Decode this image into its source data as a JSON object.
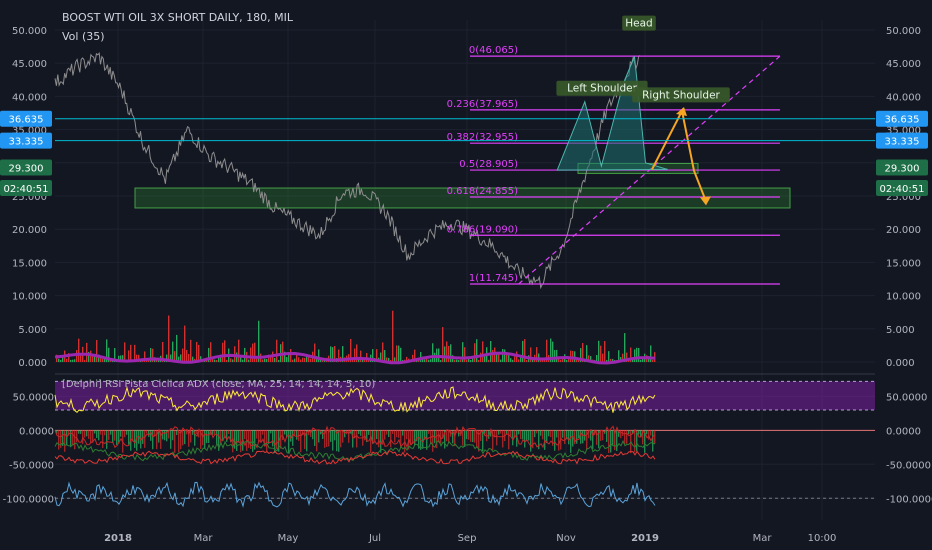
{
  "header": {
    "title": "BOOST WTI OIL 3X SHORT DAILY, 180, MIL",
    "volume_label": "Vol (35)"
  },
  "chart_data": {
    "type": "line",
    "price_axis": {
      "ticks": [
        "50.000",
        "45.000",
        "40.000",
        "35.000",
        "30.000",
        "25.000",
        "20.000",
        "15.000",
        "10.000",
        "5.000",
        "0.000"
      ],
      "tick_values": [
        50,
        45,
        40,
        35,
        30,
        25,
        20,
        15,
        10,
        5,
        0
      ],
      "range": [
        -1.5,
        51.5
      ]
    },
    "price_series": {
      "name": "Price",
      "x": [
        0,
        4,
        8,
        12,
        16,
        20,
        24,
        28,
        32,
        36,
        40,
        44,
        48,
        52,
        56,
        60,
        64,
        68,
        72,
        76,
        80,
        84,
        88,
        92,
        96,
        100,
        104,
        106
      ],
      "y": [
        42,
        44.5,
        46,
        41,
        33,
        27.5,
        35,
        31,
        29,
        26.5,
        23,
        21,
        19,
        25.5,
        26,
        22.5,
        16,
        19.5,
        21,
        19.3,
        17,
        13.5,
        12,
        17.5,
        28,
        38,
        44,
        46
      ]
    },
    "date_axis": {
      "labels": [
        "2018",
        "Mar",
        "May",
        "Jul",
        "Sep",
        "Nov",
        "2019",
        "Mar",
        "10:00"
      ],
      "bold": [
        true,
        false,
        false,
        false,
        false,
        false,
        true,
        false,
        false
      ]
    },
    "fibonacci": [
      {
        "label": "0(46.065)",
        "value": 46.065
      },
      {
        "label": "0.236(37.965)",
        "value": 37.965
      },
      {
        "label": "0.382(32.955)",
        "value": 32.955
      },
      {
        "label": "0.5(28.905)",
        "value": 28.905
      },
      {
        "label": "0.618(24.855)",
        "value": 24.855
      },
      {
        "label": "0.786(19.090)",
        "value": 19.09
      },
      {
        "label": "1(11.745)",
        "value": 11.745
      }
    ],
    "price_badges": [
      {
        "label": "36.635",
        "value": 36.635,
        "color": "#2196f3"
      },
      {
        "label": "33.335",
        "value": 33.335,
        "color": "#2196f3"
      },
      {
        "label": "29.300",
        "value": 29.3,
        "color": "#1e6f47"
      },
      {
        "label": "02:40:51",
        "value": 26.2,
        "color": "#1e6f47"
      }
    ],
    "pattern_labels": [
      {
        "label": "Head",
        "value": 50.5
      },
      {
        "label": "Left Shoulder",
        "value": 40.7
      },
      {
        "label": "Right Shoulder",
        "value": 39.7
      }
    ],
    "oscillator_axis": {
      "ticks": [
        "50.0000",
        "0.0000",
        "-50.0000",
        "-100.0000"
      ],
      "tick_values": [
        50,
        0,
        -50,
        -100
      ],
      "range": [
        -132,
        80
      ]
    },
    "oscillator_legend": "[Delphi] RSI Pista Ciclica ADX (close, MA, 25, 14, 14, 14, 5, 10)",
    "colors": {
      "background": "#131722",
      "fib": "#e040fb",
      "volume_ma": "#9c27b0",
      "rsi_band": "#7b1fa2",
      "rsi_line": "#ffeb3b",
      "adx_line": "#5ba3d9",
      "pattern_fill": "#1e6f6f",
      "zone_fill": "#2e7d32",
      "arrow": "#f5a623"
    }
  }
}
